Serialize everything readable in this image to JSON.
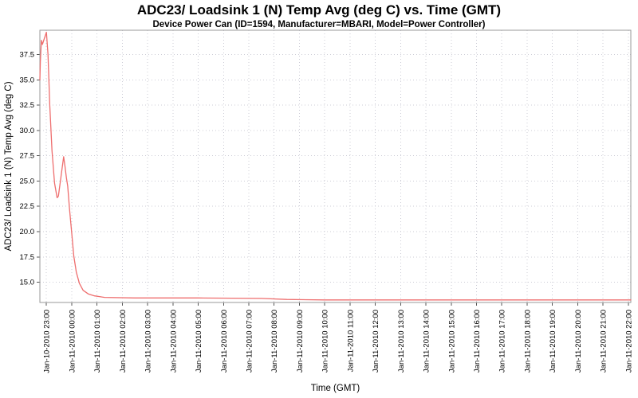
{
  "chart_data": {
    "type": "line",
    "title": "ADC23/ Loadsink 1 (N) Temp Avg (deg C) vs. Time (GMT)",
    "subtitle": "Device Power Can (ID=1594, Manufacturer=MBARI, Model=Power Controller)",
    "xlabel": "Time (GMT)",
    "ylabel": "ADC23/ Loadsink 1 (N) Temp Avg (deg C)",
    "legend": "none",
    "grid": true,
    "x_tick_labels": [
      "Jan-10-2010 23:00",
      "Jan-11-2010 00:00",
      "Jan-11-2010 01:00",
      "Jan-11-2010 02:00",
      "Jan-11-2010 03:00",
      "Jan-11-2010 04:00",
      "Jan-11-2010 05:00",
      "Jan-11-2010 06:00",
      "Jan-11-2010 07:00",
      "Jan-11-2010 08:00",
      "Jan-11-2010 09:00",
      "Jan-11-2010 10:00",
      "Jan-11-2010 11:00",
      "Jan-11-2010 12:00",
      "Jan-11-2010 13:00",
      "Jan-11-2010 14:00",
      "Jan-11-2010 15:00",
      "Jan-11-2010 16:00",
      "Jan-11-2010 17:00",
      "Jan-11-2010 18:00",
      "Jan-11-2010 19:00",
      "Jan-11-2010 20:00",
      "Jan-11-2010 21:00",
      "Jan-11-2010 22:00"
    ],
    "y_tick_labels": [
      "15.0",
      "17.5",
      "20.0",
      "22.5",
      "25.0",
      "27.5",
      "30.0",
      "32.5",
      "35.0",
      "37.5"
    ],
    "ylim": [
      13.0,
      39.9
    ],
    "xlim_hours": [
      -0.26,
      23.1
    ],
    "colors": {
      "line": "#ee6e6e",
      "grid": "#ccccd6",
      "border": "#9a9a9a",
      "tick": "#555555",
      "text": "#000000",
      "background": "#ffffff"
    },
    "series": [
      {
        "points": [
          [
            -0.26,
            35.0
          ],
          [
            -0.24,
            36.8
          ],
          [
            -0.2,
            38.9
          ],
          [
            -0.16,
            38.5
          ],
          [
            -0.12,
            38.8
          ],
          [
            0.0,
            39.7
          ],
          [
            0.06,
            37.5
          ],
          [
            0.13,
            32.5
          ],
          [
            0.22,
            28.0
          ],
          [
            0.32,
            24.8
          ],
          [
            0.42,
            23.35
          ],
          [
            0.47,
            23.5
          ],
          [
            0.58,
            25.5
          ],
          [
            0.68,
            27.4
          ],
          [
            0.73,
            26.5
          ],
          [
            0.79,
            25.3
          ],
          [
            0.84,
            24.5
          ],
          [
            0.91,
            22.3
          ],
          [
            1.0,
            19.8
          ],
          [
            1.08,
            17.6
          ],
          [
            1.18,
            16.0
          ],
          [
            1.3,
            14.9
          ],
          [
            1.45,
            14.2
          ],
          [
            1.65,
            13.85
          ],
          [
            1.9,
            13.65
          ],
          [
            2.3,
            13.5
          ],
          [
            3.5,
            13.45
          ],
          [
            6.0,
            13.45
          ],
          [
            8.5,
            13.4
          ],
          [
            9.5,
            13.3
          ],
          [
            11.0,
            13.25
          ],
          [
            23.1,
            13.25
          ]
        ]
      }
    ]
  }
}
